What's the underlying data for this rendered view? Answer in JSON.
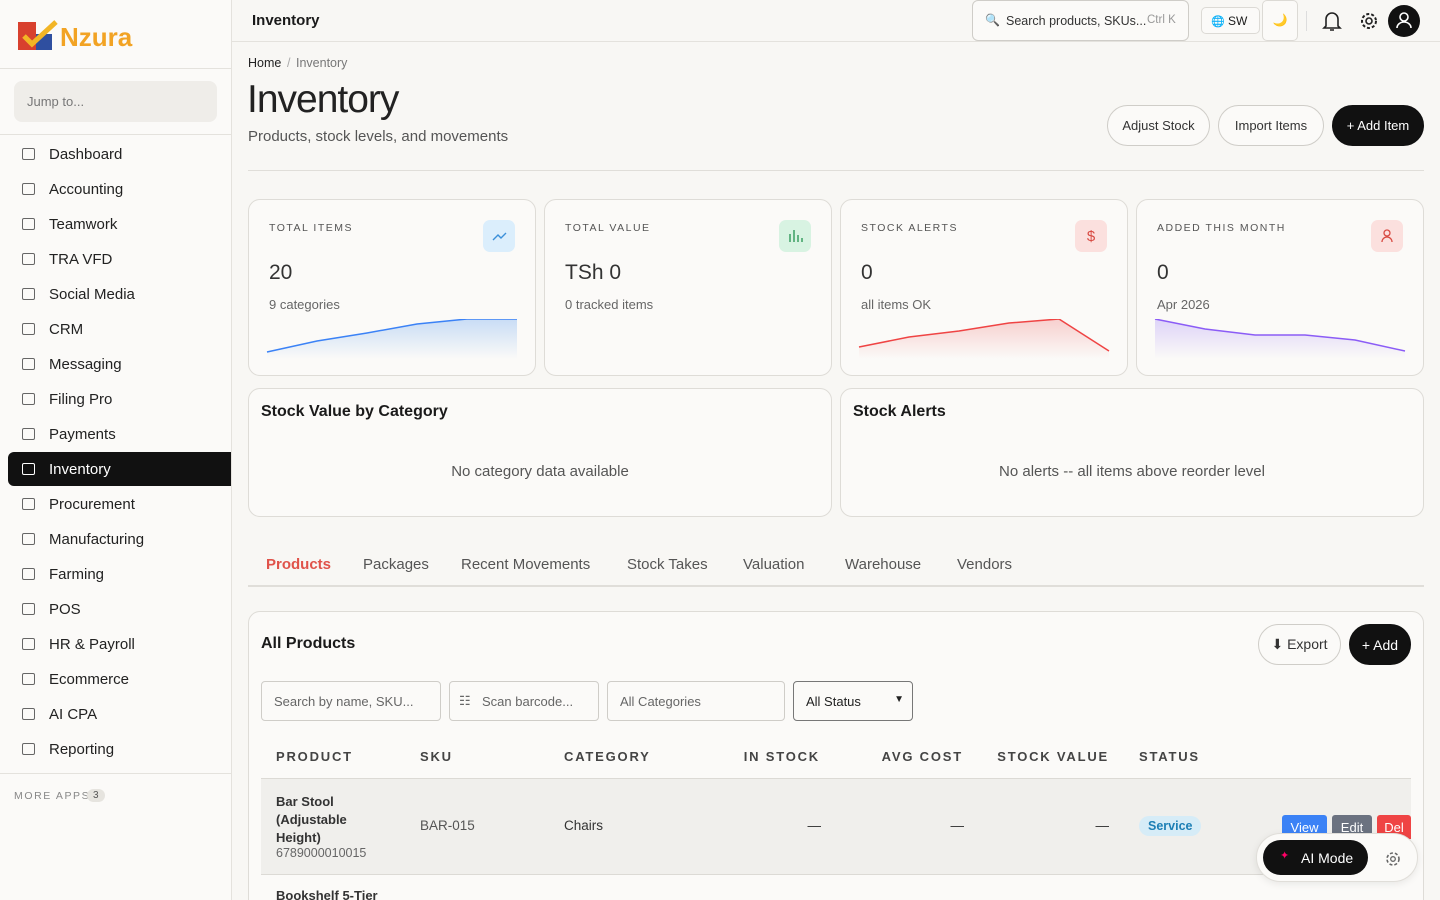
{
  "logo": "Nzura",
  "topbar": {
    "title": "Inventory",
    "search": "Search products, SKUs...",
    "shortcut": "Ctrl K",
    "lang": "SW"
  },
  "sidebar": {
    "jump": "Jump to...",
    "nav": [
      "Dashboard",
      "Accounting",
      "Teamwork",
      "TRA VFD",
      "Social Media",
      "CRM",
      "Messaging",
      "Filing Pro",
      "Payments",
      "Inventory",
      "Procurement",
      "Manufacturing",
      "Farming",
      "POS",
      "HR & Payroll",
      "Ecommerce",
      "AI CPA",
      "Reporting"
    ],
    "active": "Inventory",
    "more_apps": "MORE APPS",
    "more_count": 3
  },
  "breadcrumb": [
    "Home",
    "Inventory"
  ],
  "header": {
    "title": "Inventory",
    "subtitle": "Products, stock levels, and movements",
    "actions": [
      "Adjust Stock",
      "Import Items",
      "+ Add Item"
    ]
  },
  "stats": [
    {
      "label": "TOTAL ITEMS",
      "value": "20",
      "note": "9 categories"
    },
    {
      "label": "TOTAL VALUE",
      "value": "TSh 0",
      "note": "0 tracked items"
    },
    {
      "label": "STOCK ALERTS",
      "value": "0",
      "note": "all items OK"
    },
    {
      "label": "ADDED THIS MONTH",
      "value": "0",
      "note": "Apr 2026"
    }
  ],
  "panels": [
    {
      "title": "Stock Value by Category",
      "empty": "No category data available"
    },
    {
      "title": "Stock Alerts",
      "empty": "No alerts -- all items above reorder level"
    }
  ],
  "tabs": [
    "Products",
    "Packages",
    "Recent Movements",
    "Stock Takes",
    "Valuation",
    "Warehouse",
    "Vendors"
  ],
  "products": {
    "title": "All Products",
    "export": "⬇ Export",
    "add": "+ Add",
    "search": "Search by name, SKU...",
    "barcode": "Scan barcode...",
    "category": "All Categories",
    "status": "All Status",
    "columns": [
      "PRODUCT",
      "SKU",
      "CATEGORY",
      "IN STOCK",
      "AVG COST",
      "STOCK VALUE",
      "STATUS"
    ],
    "rows": [
      {
        "name": "Bar Stool (Adjustable Height)",
        "barcode": "6789000010015",
        "sku": "BAR-015",
        "category": "Chairs",
        "in_stock": "—",
        "avg_cost": "—",
        "stock_value": "—",
        "status": "Service",
        "actions": [
          "View",
          "Edit",
          "Del"
        ]
      },
      {
        "name": "Bookshelf 5-Tier"
      }
    ]
  },
  "ai": {
    "label": "AI Mode"
  }
}
